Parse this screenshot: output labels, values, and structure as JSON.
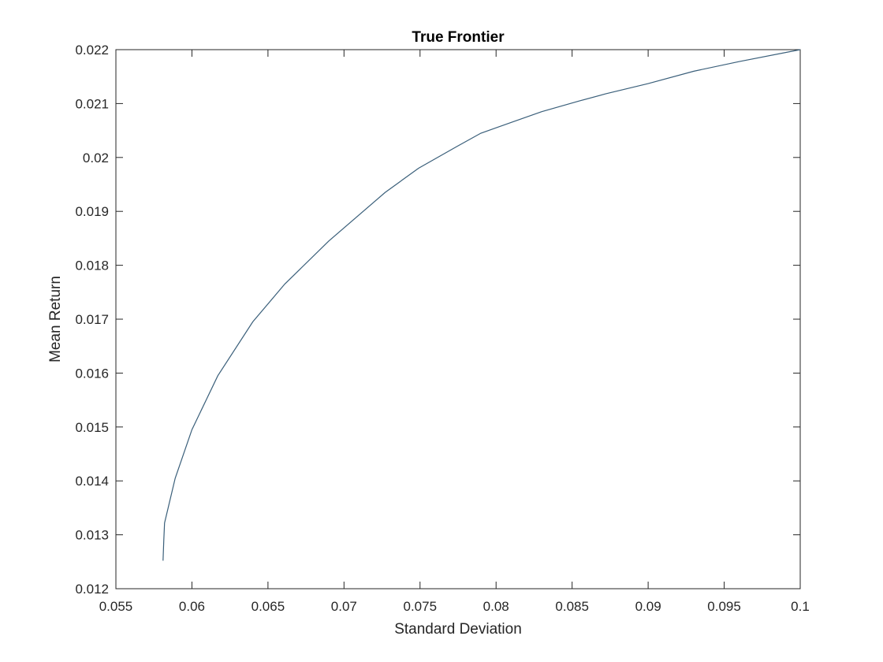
{
  "chart_data": {
    "type": "line",
    "title": "True Frontier",
    "xlabel": "Standard Deviation",
    "ylabel": "Mean Return",
    "xlim": [
      0.055,
      0.1
    ],
    "ylim": [
      0.012,
      0.022
    ],
    "xticks": [
      0.055,
      0.06,
      0.065,
      0.07,
      0.075,
      0.08,
      0.085,
      0.09,
      0.095,
      0.1
    ],
    "xtick_labels": [
      "0.055",
      "0.06",
      "0.065",
      "0.07",
      "0.075",
      "0.08",
      "0.085",
      "0.09",
      "0.095",
      "0.1"
    ],
    "yticks": [
      0.012,
      0.013,
      0.014,
      0.015,
      0.016,
      0.017,
      0.018,
      0.019,
      0.02,
      0.021,
      0.022
    ],
    "ytick_labels": [
      "0.012",
      "0.013",
      "0.014",
      "0.015",
      "0.016",
      "0.017",
      "0.018",
      "0.019",
      "0.02",
      "0.021",
      "0.022"
    ],
    "grid": false,
    "box": true,
    "line_color": "#3a5f7a",
    "series": [
      {
        "x": [
          0.0581,
          0.05815,
          0.0582,
          0.0589,
          0.06,
          0.0617,
          0.064,
          0.0661,
          0.069,
          0.0727,
          0.0749,
          0.0774,
          0.079,
          0.081,
          0.083,
          0.0855,
          0.0872,
          0.09,
          0.093,
          0.096,
          0.1
        ],
        "y": [
          0.01252,
          0.0129,
          0.01322,
          0.01405,
          0.01495,
          0.01595,
          0.01695,
          0.01765,
          0.01845,
          0.01935,
          0.0198,
          0.0202,
          0.02045,
          0.02065,
          0.02085,
          0.02105,
          0.02118,
          0.02137,
          0.0216,
          0.02178,
          0.022
        ]
      }
    ]
  }
}
